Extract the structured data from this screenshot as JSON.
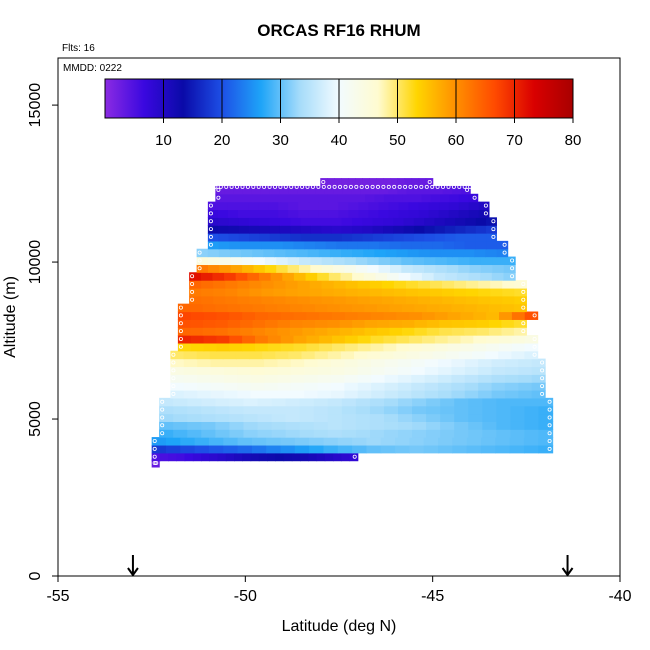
{
  "chart_data": {
    "type": "heatmap",
    "title": "ORCAS RF16 RHUM",
    "notes": [
      "Flts: 16",
      "MMDD: 0222"
    ],
    "xlabel": "Latitude (deg N)",
    "ylabel": "Altitude (m)",
    "xlim": [
      -55,
      -40
    ],
    "ylim": [
      0,
      16500
    ],
    "x_ticks": [
      -55,
      -50,
      -45,
      -40
    ],
    "y_ticks": [
      0,
      5000,
      10000,
      15000
    ],
    "colorbar": {
      "range": [
        0,
        80
      ],
      "ticks": [
        10,
        20,
        30,
        40,
        50,
        60,
        70,
        80
      ],
      "stops": [
        "#8b2be2",
        "#3a08e0",
        "#0a0aa8",
        "#1d4fe6",
        "#1ea4f8",
        "#a6dcfa",
        "#f2fbff",
        "#fffbd0",
        "#ffd500",
        "#ff8f00",
        "#ff4a00",
        "#d90000",
        "#a80000"
      ]
    },
    "markers": {
      "type": "arrow-down",
      "x": [
        -53,
        -41.4
      ]
    },
    "rows": [
      {
        "alt": 3600,
        "lat_min": -52.5,
        "lat_max": -52.3,
        "rh": [
          3
        ]
      },
      {
        "alt": 3800,
        "lat_min": -52.5,
        "lat_max": -47.0,
        "rh": [
          5,
          6,
          8,
          10,
          12,
          13,
          12,
          10,
          8
        ]
      },
      {
        "alt": 4050,
        "lat_min": -52.5,
        "lat_max": -41.8,
        "rh": [
          18,
          20,
          22,
          25,
          28,
          30,
          31,
          30,
          29,
          28
        ]
      },
      {
        "alt": 4300,
        "lat_min": -52.5,
        "lat_max": -41.8,
        "rh": [
          26,
          28,
          30,
          31,
          32,
          33,
          32,
          31,
          30,
          29
        ]
      },
      {
        "alt": 4550,
        "lat_min": -52.3,
        "lat_max": -41.8,
        "rh": [
          28,
          30,
          32,
          33,
          34,
          33,
          32,
          31,
          30,
          29
        ]
      },
      {
        "alt": 4800,
        "lat_min": -52.3,
        "lat_max": -41.8,
        "rh": [
          30,
          31,
          33,
          34,
          35,
          34,
          33,
          31,
          29,
          28
        ]
      },
      {
        "alt": 5050,
        "lat_min": -52.3,
        "lat_max": -41.8,
        "rh": [
          33,
          34,
          35,
          36,
          35,
          34,
          32,
          30,
          29,
          28
        ]
      },
      {
        "alt": 5300,
        "lat_min": -52.3,
        "lat_max": -41.8,
        "rh": [
          34,
          35,
          36,
          36,
          35,
          33,
          31,
          30,
          29,
          28
        ]
      },
      {
        "alt": 5550,
        "lat_min": -52.3,
        "lat_max": -41.8,
        "rh": [
          36,
          37,
          38,
          37,
          36,
          34,
          32,
          30,
          29,
          29
        ]
      },
      {
        "alt": 5800,
        "lat_min": -52.0,
        "lat_max": -42.0,
        "rh": [
          38,
          39,
          40,
          40,
          39,
          37,
          35,
          33,
          31,
          30
        ]
      },
      {
        "alt": 6050,
        "lat_min": -52.0,
        "lat_max": -42.0,
        "rh": [
          40,
          41,
          42,
          41,
          40,
          38,
          36,
          34,
          32,
          31
        ]
      },
      {
        "alt": 6300,
        "lat_min": -52.0,
        "lat_max": -42.0,
        "rh": [
          42,
          43,
          44,
          43,
          42,
          40,
          38,
          36,
          34,
          33
        ]
      },
      {
        "alt": 6550,
        "lat_min": -52.0,
        "lat_max": -42.0,
        "rh": [
          44,
          45,
          46,
          45,
          44,
          42,
          40,
          38,
          36,
          35
        ]
      },
      {
        "alt": 6800,
        "lat_min": -52.0,
        "lat_max": -42.0,
        "rh": [
          47,
          48,
          48,
          47,
          45,
          43,
          41,
          39,
          37,
          36
        ]
      },
      {
        "alt": 7050,
        "lat_min": -52.0,
        "lat_max": -42.2,
        "rh": [
          50,
          51,
          51,
          50,
          48,
          46,
          44,
          42,
          40,
          38
        ]
      },
      {
        "alt": 7300,
        "lat_min": -51.8,
        "lat_max": -42.2,
        "rh": [
          53,
          54,
          53,
          52,
          50,
          48,
          46,
          44,
          42,
          40
        ]
      },
      {
        "alt": 7550,
        "lat_min": -51.8,
        "lat_max": -42.2,
        "rh": [
          70,
          68,
          62,
          58,
          55,
          52,
          50,
          48,
          46,
          44
        ]
      },
      {
        "alt": 7800,
        "lat_min": -51.8,
        "lat_max": -42.5,
        "rh": [
          64,
          63,
          61,
          59,
          57,
          55,
          53,
          51,
          50,
          48
        ]
      },
      {
        "alt": 8050,
        "lat_min": -51.8,
        "lat_max": -42.5,
        "rh": [
          66,
          65,
          63,
          61,
          60,
          58,
          57,
          55,
          54,
          52
        ]
      },
      {
        "alt": 8300,
        "lat_min": -51.8,
        "lat_max": -42.2,
        "rh": [
          67,
          66,
          64,
          63,
          62,
          61,
          60,
          58,
          56,
          66
        ]
      },
      {
        "alt": 8550,
        "lat_min": -51.8,
        "lat_max": -42.5,
        "rh": [
          64,
          63,
          62,
          61,
          60,
          59,
          58,
          57,
          56,
          55
        ]
      },
      {
        "alt": 8800,
        "lat_min": -51.5,
        "lat_max": -42.5,
        "rh": [
          63,
          62,
          61,
          60,
          59,
          58,
          57,
          56,
          55,
          54
        ]
      },
      {
        "alt": 9050,
        "lat_min": -51.5,
        "lat_max": -42.5,
        "rh": [
          62,
          61,
          59,
          58,
          57,
          56,
          55,
          54,
          53,
          52
        ]
      },
      {
        "alt": 9300,
        "lat_min": -51.5,
        "lat_max": -42.5,
        "rh": [
          64,
          62,
          60,
          58,
          56,
          54,
          52,
          50,
          48,
          46
        ]
      },
      {
        "alt": 9550,
        "lat_min": -51.5,
        "lat_max": -42.8,
        "rh": [
          72,
          68,
          62,
          56,
          50,
          45,
          40,
          36,
          34,
          32
        ]
      },
      {
        "alt": 9800,
        "lat_min": -51.3,
        "lat_max": -42.8,
        "rh": [
          62,
          58,
          53,
          48,
          44,
          40,
          36,
          34,
          32,
          31
        ]
      },
      {
        "alt": 10050,
        "lat_min": -51.3,
        "lat_max": -42.8,
        "rh": [
          45,
          42,
          39,
          36,
          34,
          32,
          30,
          29,
          28,
          28
        ]
      },
      {
        "alt": 10300,
        "lat_min": -51.3,
        "lat_max": -43.0,
        "rh": [
          32,
          31,
          30,
          29,
          28,
          27,
          26,
          25,
          25,
          24
        ]
      },
      {
        "alt": 10550,
        "lat_min": -51.0,
        "lat_max": -43.0,
        "rh": [
          26,
          25,
          25,
          24,
          23,
          23,
          22,
          22,
          21,
          21
        ]
      },
      {
        "alt": 10800,
        "lat_min": -51.0,
        "lat_max": -43.3,
        "rh": [
          20,
          19,
          18,
          17,
          17,
          18,
          19,
          20,
          21,
          21
        ]
      },
      {
        "alt": 11050,
        "lat_min": -51.0,
        "lat_max": -43.3,
        "rh": [
          13,
          12,
          11,
          10,
          9,
          10,
          12,
          14,
          16,
          18
        ]
      },
      {
        "alt": 11300,
        "lat_min": -51.0,
        "lat_max": -43.3,
        "rh": [
          9,
          8,
          7,
          6,
          6,
          7,
          8,
          10,
          12,
          14
        ]
      },
      {
        "alt": 11550,
        "lat_min": -51.0,
        "lat_max": -43.5,
        "rh": [
          7,
          6,
          6,
          5,
          5,
          6,
          7,
          8,
          10,
          12
        ]
      },
      {
        "alt": 11800,
        "lat_min": -51.0,
        "lat_max": -43.5,
        "rh": [
          5,
          5,
          5,
          4,
          4,
          5,
          6,
          7,
          8,
          10
        ]
      },
      {
        "alt": 12050,
        "lat_min": -50.8,
        "lat_max": -43.8,
        "rh": [
          4,
          4,
          4,
          4,
          4,
          4,
          5,
          5,
          6,
          7
        ]
      },
      {
        "alt": 12300,
        "lat_min": -50.8,
        "lat_max": -44.0,
        "rh": [
          3,
          3,
          3,
          3,
          3,
          3,
          3,
          4,
          4,
          5
        ]
      },
      {
        "alt": 12550,
        "lat_min": -48.0,
        "lat_max": -45.0,
        "rh": [
          2,
          2,
          2,
          2,
          3,
          3
        ]
      }
    ]
  }
}
